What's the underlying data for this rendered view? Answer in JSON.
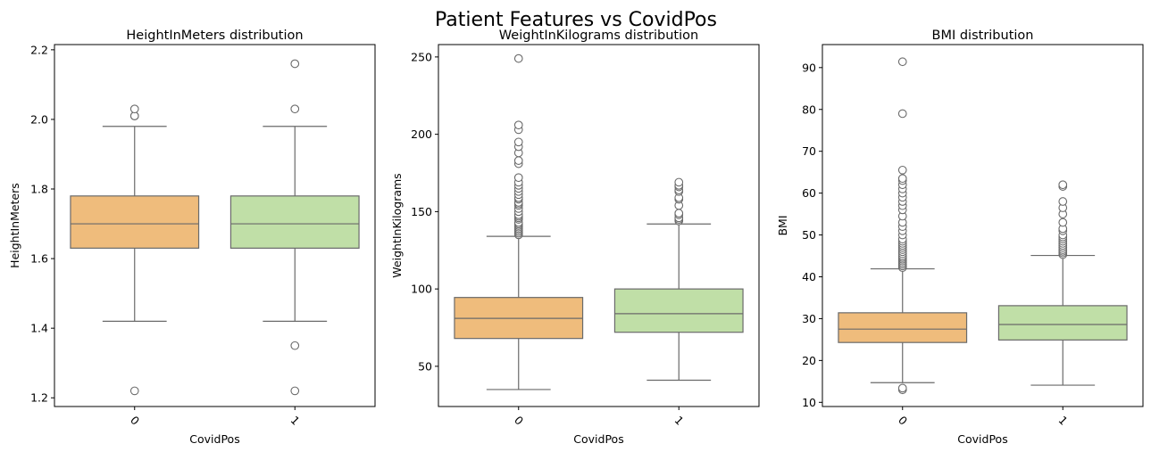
{
  "figure": {
    "title": "Patient Features vs CovidPos"
  },
  "colors": {
    "box": [
      "#efbc7c",
      "#c0dfa7"
    ],
    "line": "#6a6a6a",
    "frame": "#000000",
    "outlier_face": "#ffffff"
  },
  "chart_data": [
    {
      "type": "box",
      "title": "HeightInMeters distribution",
      "xlabel": "CovidPos",
      "ylabel": "HeightInMeters",
      "categories": [
        "0",
        "1"
      ],
      "ylim": [
        1.175,
        2.215
      ],
      "yticks": [
        1.2,
        1.4,
        1.6,
        1.8,
        2.0,
        2.2
      ],
      "ytick_labels": [
        "1.2",
        "1.4",
        "1.6",
        "1.8",
        "2.0",
        "2.2"
      ],
      "grid": false,
      "boxes": [
        {
          "q1": 1.63,
          "median": 1.7,
          "q3": 1.78,
          "whisker_low": 1.42,
          "whisker_high": 1.98,
          "outliers": [
            1.22,
            2.01,
            2.01,
            2.03
          ]
        },
        {
          "q1": 1.63,
          "median": 1.7,
          "q3": 1.78,
          "whisker_low": 1.42,
          "whisker_high": 1.98,
          "outliers": [
            1.22,
            1.35,
            2.03,
            2.16
          ]
        }
      ]
    },
    {
      "type": "box",
      "title": "WeightInKilograms distribution",
      "xlabel": "CovidPos",
      "ylabel": "WeightInKilograms",
      "categories": [
        "0",
        "1"
      ],
      "ylim": [
        24,
        258
      ],
      "yticks": [
        50,
        100,
        150,
        200,
        250
      ],
      "ytick_labels": [
        "50",
        "100",
        "150",
        "200",
        "250"
      ],
      "grid": false,
      "boxes": [
        {
          "q1": 68,
          "median": 81,
          "q3": 94.5,
          "whisker_low": 35,
          "whisker_high": 134,
          "outliers": [
            135,
            136,
            137,
            138,
            139,
            140,
            141,
            142,
            143,
            145,
            146,
            147,
            148,
            150,
            152,
            154,
            155,
            156,
            158,
            159,
            161,
            163,
            165,
            167,
            169,
            172,
            181,
            183,
            188,
            192,
            195,
            203,
            206,
            249
          ]
        },
        {
          "q1": 72,
          "median": 84,
          "q3": 100,
          "whisker_low": 41,
          "whisker_high": 142,
          "outliers": [
            144,
            145,
            146,
            148,
            149,
            154,
            158,
            159,
            163,
            164,
            166,
            167,
            169
          ]
        }
      ]
    },
    {
      "type": "box",
      "title": "BMI distribution",
      "xlabel": "CovidPos",
      "ylabel": "BMI",
      "categories": [
        "0",
        "1"
      ],
      "ylim": [
        9,
        95.5
      ],
      "yticks": [
        10,
        20,
        30,
        40,
        50,
        60,
        70,
        80,
        90
      ],
      "ytick_labels": [
        "10",
        "20",
        "30",
        "40",
        "50",
        "60",
        "70",
        "80",
        "90"
      ],
      "grid": false,
      "boxes": [
        {
          "q1": 24.3,
          "median": 27.5,
          "q3": 31.4,
          "whisker_low": 14.7,
          "whisker_high": 41.9,
          "outliers": [
            13,
            13.4,
            42.2,
            42.6,
            43,
            43.4,
            43.8,
            44.2,
            44.6,
            45,
            45.5,
            46,
            46.5,
            47,
            47.5,
            48,
            48.5,
            49,
            50,
            51,
            52,
            53,
            54.5,
            56,
            57,
            58,
            59,
            60,
            61,
            62,
            63,
            63.5,
            65.5,
            79,
            91.4
          ]
        },
        {
          "q1": 24.9,
          "median": 28.6,
          "q3": 33.1,
          "whisker_low": 14.1,
          "whisker_high": 45.1,
          "outliers": [
            45.3,
            45.7,
            46.1,
            46.5,
            47,
            47.5,
            48,
            48.5,
            49,
            49.5,
            50,
            51,
            51.5,
            53,
            55,
            56.5,
            58,
            61.6,
            62
          ]
        }
      ]
    }
  ]
}
